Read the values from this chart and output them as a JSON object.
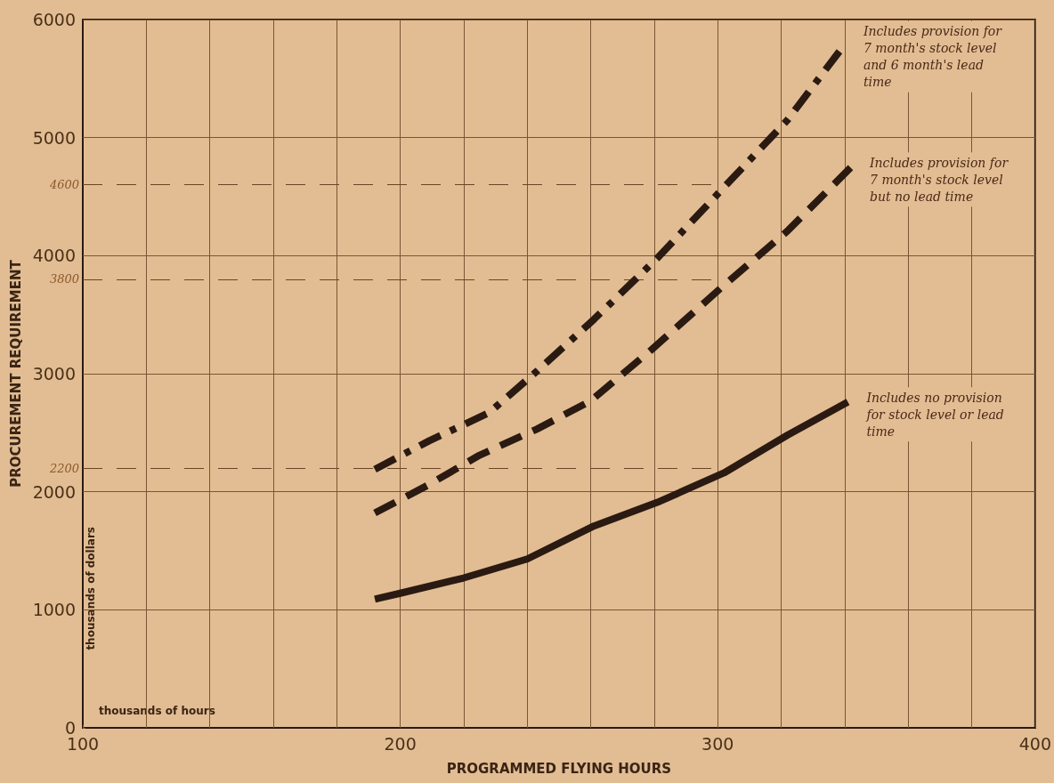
{
  "chart_data": {
    "type": "line",
    "xlabel": "PROGRAMMED FLYING HOURS",
    "ylabel": "PROCUREMENT REQUIREMENT",
    "annotations": [
      "thousands of hours",
      "thousands of dollars"
    ],
    "series": [
      {
        "name": "Includes provision for 7 month's stock level and 6 month's lead time",
        "color": "#2a1a12",
        "line_style": "dashdot",
        "x": [
          192,
          209,
          228,
          243,
          261,
          281,
          302,
          322,
          340
        ],
        "values": [
          2190,
          2430,
          2670,
          3020,
          3460,
          3980,
          4580,
          5150,
          5790
        ]
      },
      {
        "name": "Includes provision for 7 month's stock level but no lead time",
        "color": "#2a1a12",
        "line_style": "dashed",
        "x": [
          192,
          209,
          225,
          243,
          260,
          279,
          302,
          322,
          342
        ],
        "values": [
          1820,
          2060,
          2310,
          2530,
          2770,
          3200,
          3750,
          4210,
          4750
        ]
      },
      {
        "name": "Includes no provision for stock level or lead time",
        "color": "#2a1a12",
        "line_style": "solid",
        "x": [
          192,
          200,
          220,
          240,
          261,
          281,
          302,
          322,
          341
        ],
        "values": [
          1090,
          1140,
          1270,
          1430,
          1710,
          1910,
          2160,
          2480,
          2760
        ]
      }
    ],
    "xlim": [
      100,
      400
    ],
    "ylim": [
      0,
      6000
    ],
    "xticks": [
      100,
      {
        "value": 120,
        "label": null
      },
      {
        "value": 140,
        "label": null
      },
      {
        "value": 160,
        "label": null
      },
      {
        "value": 180,
        "label": null
      },
      200,
      {
        "value": 220,
        "label": null
      },
      {
        "value": 240,
        "label": null
      },
      {
        "value": 260,
        "label": null
      },
      {
        "value": 280,
        "label": null
      },
      300,
      {
        "value": 320,
        "label": null
      },
      {
        "value": 340,
        "label": null
      },
      {
        "value": 360,
        "label": null
      },
      {
        "value": 380,
        "label": null
      },
      400
    ],
    "yticks": [
      0,
      1000,
      2000,
      3000,
      4000,
      5000,
      6000
    ],
    "ref_lines": [
      {
        "axis": "y",
        "value": 4600,
        "label": "4600",
        "line_style": "dashed"
      },
      {
        "axis": "y",
        "value": 3800,
        "label": "3800",
        "line_style": "dashed"
      },
      {
        "axis": "y",
        "value": 2200,
        "label": "2200",
        "line_style": "dashed"
      }
    ],
    "grid": true,
    "legend": false,
    "marker": "none"
  }
}
